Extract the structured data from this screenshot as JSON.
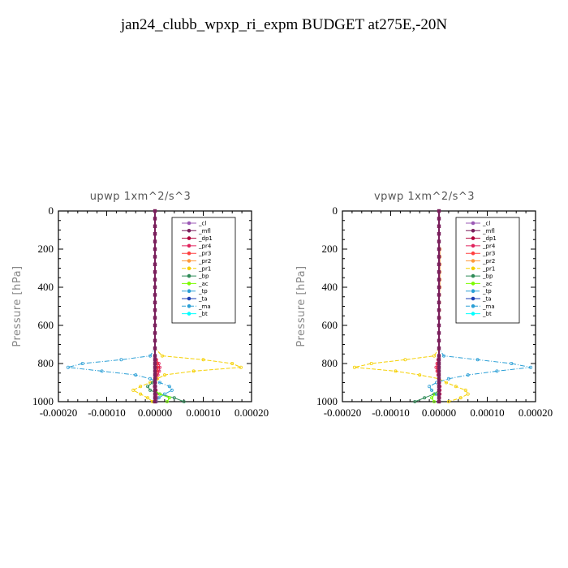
{
  "title": "jan24_clubb_wpxp_ri_expm  BUDGET at275E,-20N",
  "chart_data": [
    {
      "type": "line",
      "title": "upwp   1xm^2/s^3",
      "ylabel": "Pressure [hPa]",
      "xlabel": "",
      "xlim": [
        -0.0002,
        0.0002
      ],
      "ylim": [
        1000,
        0
      ],
      "xticks": [
        "-0.00020",
        "-0.00010",
        "0.00000",
        "0.00010",
        "0.00020"
      ],
      "yticks": [
        "0",
        "200",
        "400",
        "600",
        "800",
        "1000"
      ],
      "legend_position": "top-right",
      "levels": [
        0,
        40,
        80,
        120,
        160,
        200,
        240,
        280,
        320,
        360,
        400,
        440,
        480,
        520,
        560,
        600,
        640,
        680,
        720,
        760,
        780,
        800,
        820,
        840,
        860,
        880,
        900,
        920,
        940,
        960,
        980,
        1000
      ],
      "series": [
        {
          "name": "_cl",
          "color": "#9b59b6",
          "values": [
            0,
            0,
            0,
            0,
            0,
            0,
            0,
            0,
            0,
            0,
            0,
            0,
            0,
            0,
            0,
            0,
            0,
            0,
            0,
            0,
            0,
            0,
            0,
            0,
            0,
            0,
            0,
            0,
            0,
            0,
            0,
            0
          ]
        },
        {
          "name": "_mfl",
          "color": "#7a1f5c",
          "values": [
            0,
            0,
            0,
            0,
            0,
            0,
            0,
            0,
            0,
            0,
            0,
            0,
            0,
            0,
            0,
            0,
            0,
            0,
            0,
            0,
            0,
            0,
            0,
            0,
            0,
            0,
            0,
            0,
            0,
            0,
            0,
            0
          ]
        },
        {
          "name": "_dp1",
          "color": "#b0003a",
          "values": [
            0,
            0,
            0,
            0,
            0,
            0,
            0,
            0,
            0,
            0,
            0,
            0,
            0,
            0,
            0,
            0,
            0,
            0,
            0,
            0,
            2e-06,
            4e-06,
            6e-06,
            5e-06,
            3e-06,
            2e-06,
            1e-06,
            1e-06,
            2e-06,
            3e-06,
            4e-06,
            3e-06
          ]
        },
        {
          "name": "_pr4",
          "color": "#e0245e",
          "values": [
            0,
            0,
            0,
            0,
            0,
            0,
            0,
            0,
            0,
            0,
            0,
            0,
            0,
            0,
            0,
            0,
            0,
            0,
            0,
            0,
            3e-06,
            8e-06,
            1e-05,
            9e-06,
            6e-06,
            3e-06,
            1e-06,
            -1e-06,
            1e-06,
            3e-06,
            4e-06,
            2e-06
          ]
        },
        {
          "name": "_pr3",
          "color": "#ff4040",
          "values": [
            0,
            0,
            0,
            0,
            0,
            0,
            0,
            0,
            0,
            0,
            0,
            0,
            0,
            0,
            0,
            0,
            0,
            0,
            0,
            0,
            2e-06,
            4e-06,
            5e-06,
            4e-06,
            2e-06,
            0,
            0,
            0,
            0,
            0,
            0,
            0
          ]
        },
        {
          "name": "_pr2",
          "color": "#ff9a3c",
          "values": [
            0,
            0,
            0,
            0,
            0,
            0,
            0,
            0,
            0,
            0,
            0,
            0,
            0,
            0,
            0,
            0,
            0,
            0,
            0,
            0,
            0,
            0,
            0,
            0,
            0,
            0,
            0,
            0,
            0,
            0,
            0,
            0
          ]
        },
        {
          "name": "_pr1",
          "color": "#f5d000",
          "values": [
            0,
            0,
            0,
            0,
            0,
            0,
            0,
            0,
            0,
            0,
            0,
            0,
            0,
            0,
            0,
            0,
            0,
            0,
            0,
            1.5e-05,
            0.0001,
            0.00016,
            0.000178,
            8e-05,
            2e-05,
            5e-06,
            -1e-05,
            -3e-05,
            -4.5e-05,
            -3e-05,
            -1.5e-05,
            -5e-06
          ]
        },
        {
          "name": "_bp",
          "color": "#2e8b57",
          "values": [
            0,
            0,
            0,
            0,
            0,
            0,
            0,
            0,
            0,
            0,
            0,
            0,
            0,
            0,
            0,
            0,
            0,
            0,
            0,
            0,
            0,
            0,
            0,
            0,
            0,
            0,
            -5e-06,
            -1.5e-05,
            -1e-05,
            1e-05,
            4e-05,
            6e-05
          ]
        },
        {
          "name": "_ac",
          "color": "#7cfc00",
          "values": [
            0,
            0,
            0,
            0,
            0,
            0,
            0,
            0,
            0,
            0,
            0,
            0,
            0,
            0,
            0,
            0,
            0,
            0,
            0,
            0,
            0,
            0,
            0,
            0,
            0,
            0,
            0,
            0,
            0,
            1e-05,
            3e-05,
            2.5e-05
          ]
        },
        {
          "name": "_tp",
          "color": "#2a9fd6",
          "values": [
            0,
            0,
            0,
            0,
            0,
            0,
            0,
            0,
            0,
            0,
            0,
            0,
            0,
            0,
            0,
            0,
            0,
            0,
            0,
            -1e-05,
            -7e-05,
            -0.00015,
            -0.00018,
            -0.00011,
            -4e-05,
            -1e-05,
            1e-05,
            3e-05,
            3.5e-05,
            2e-05,
            8e-06,
            2e-06
          ]
        },
        {
          "name": "_ta",
          "color": "#1f3fb4",
          "values": [
            0,
            0,
            0,
            0,
            0,
            0,
            0,
            0,
            0,
            0,
            0,
            0,
            0,
            0,
            0,
            0,
            0,
            0,
            0,
            0,
            0,
            0,
            0,
            0,
            0,
            0,
            0,
            0,
            0,
            0,
            0,
            0
          ]
        },
        {
          "name": "_ma",
          "color": "#2a9fd6",
          "values": [
            0,
            0,
            0,
            0,
            0,
            0,
            0,
            0,
            0,
            0,
            0,
            0,
            0,
            0,
            0,
            0,
            0,
            0,
            0,
            0,
            0,
            0,
            0,
            0,
            0,
            0,
            0,
            0,
            0,
            0,
            0,
            0
          ]
        },
        {
          "name": "_bt",
          "color": "#00ffff",
          "values": [
            0,
            0,
            0,
            0,
            0,
            0,
            0,
            0,
            0,
            0,
            0,
            0,
            0,
            0,
            0,
            0,
            0,
            0,
            0,
            0,
            0,
            0,
            0,
            0,
            0,
            0,
            0,
            0,
            0,
            0,
            0,
            0
          ]
        }
      ]
    },
    {
      "type": "line",
      "title": "vpwp   1xm^2/s^3",
      "ylabel": "Pressure [hPa]",
      "xlabel": "",
      "xlim": [
        -0.0002,
        0.0002
      ],
      "ylim": [
        1000,
        0
      ],
      "xticks": [
        "-0.00020",
        "-0.00010",
        "0.00000",
        "0.00010",
        "0.00020"
      ],
      "yticks": [
        "0",
        "200",
        "400",
        "600",
        "800",
        "1000"
      ],
      "legend_position": "top-right",
      "levels": [
        0,
        40,
        80,
        120,
        160,
        200,
        240,
        280,
        320,
        360,
        400,
        440,
        480,
        520,
        560,
        600,
        640,
        680,
        720,
        760,
        780,
        800,
        820,
        840,
        860,
        880,
        900,
        920,
        940,
        960,
        980,
        1000
      ],
      "series": [
        {
          "name": "_cl",
          "color": "#9b59b6",
          "values": [
            0,
            0,
            0,
            0,
            0,
            0,
            0,
            0,
            0,
            0,
            0,
            0,
            0,
            0,
            0,
            0,
            0,
            0,
            0,
            0,
            0,
            0,
            0,
            0,
            0,
            0,
            0,
            0,
            0,
            0,
            0,
            0
          ]
        },
        {
          "name": "_mfl",
          "color": "#7a1f5c",
          "values": [
            0,
            0,
            0,
            0,
            0,
            0,
            0,
            0,
            0,
            0,
            0,
            0,
            0,
            0,
            0,
            0,
            0,
            0,
            0,
            0,
            0,
            0,
            0,
            0,
            0,
            0,
            0,
            0,
            0,
            0,
            0,
            0
          ]
        },
        {
          "name": "_dp1",
          "color": "#b0003a",
          "values": [
            0,
            0,
            0,
            0,
            0,
            0,
            0,
            0,
            0,
            0,
            0,
            0,
            0,
            0,
            0,
            0,
            0,
            0,
            0,
            0,
            -1e-06,
            -2e-06,
            -3e-06,
            -2e-06,
            -1e-06,
            0,
            0,
            1e-06,
            1e-06,
            1e-06,
            1e-06,
            0
          ]
        },
        {
          "name": "_pr4",
          "color": "#e0245e",
          "values": [
            0,
            0,
            0,
            0,
            0,
            0,
            0,
            0,
            0,
            0,
            0,
            0,
            0,
            0,
            0,
            0,
            0,
            0,
            0,
            0,
            -2e-06,
            -4e-06,
            -6e-06,
            -4e-06,
            -2e-06,
            0,
            1e-06,
            2e-06,
            2e-06,
            2e-06,
            1e-06,
            0
          ]
        },
        {
          "name": "_pr3",
          "color": "#ff4040",
          "values": [
            0,
            0,
            0,
            0,
            0,
            0,
            0,
            0,
            0,
            0,
            0,
            0,
            0,
            0,
            0,
            0,
            0,
            0,
            0,
            0,
            0,
            -2e-06,
            -3e-06,
            -2e-06,
            -1e-06,
            0,
            0,
            0,
            0,
            0,
            0,
            0
          ]
        },
        {
          "name": "_pr2",
          "color": "#ff9a3c",
          "values": [
            0,
            0,
            0,
            0,
            0,
            2e-06,
            2e-06,
            2e-06,
            2e-06,
            2e-06,
            2e-06,
            1e-06,
            1e-06,
            1e-06,
            1e-06,
            0,
            0,
            0,
            0,
            0,
            0,
            0,
            0,
            0,
            0,
            0,
            0,
            0,
            0,
            0,
            0,
            0
          ]
        },
        {
          "name": "_pr1",
          "color": "#f5d000",
          "values": [
            0,
            0,
            0,
            0,
            0,
            0,
            0,
            0,
            0,
            0,
            0,
            0,
            0,
            0,
            0,
            0,
            0,
            0,
            0,
            -1e-05,
            -7e-05,
            -0.00014,
            -0.000175,
            -9e-05,
            -4e-05,
            0.0,
            1.5e-05,
            3.5e-05,
            5.5e-05,
            6e-05,
            4.5e-05,
            2e-05
          ]
        },
        {
          "name": "_bp",
          "color": "#2e8b57",
          "values": [
            0,
            0,
            0,
            0,
            0,
            0,
            0,
            0,
            0,
            0,
            0,
            0,
            0,
            0,
            0,
            0,
            0,
            0,
            0,
            0,
            0,
            0,
            0,
            0,
            0,
            0,
            0,
            0,
            0,
            -1e-05,
            -3e-05,
            -5e-05
          ]
        },
        {
          "name": "_ac",
          "color": "#7cfc00",
          "values": [
            0,
            0,
            0,
            0,
            0,
            0,
            0,
            0,
            0,
            0,
            0,
            0,
            0,
            0,
            0,
            0,
            0,
            0,
            0,
            0,
            0,
            0,
            0,
            0,
            0,
            0,
            0,
            0,
            0,
            -8e-06,
            -1.5e-05,
            -1e-05
          ]
        },
        {
          "name": "_tp",
          "color": "#2a9fd6",
          "values": [
            0,
            0,
            0,
            0,
            0,
            0,
            0,
            0,
            0,
            0,
            0,
            0,
            0,
            0,
            0,
            0,
            0,
            0,
            0,
            1e-05,
            8e-05,
            0.00015,
            0.00019,
            0.00012,
            6e-05,
            2e-05,
            -5e-06,
            -2e-05,
            -1.5e-05,
            -5e-06,
            0,
            0
          ]
        },
        {
          "name": "_ta",
          "color": "#1f3fb4",
          "values": [
            0,
            0,
            0,
            0,
            0,
            0,
            0,
            0,
            0,
            0,
            0,
            0,
            0,
            0,
            0,
            0,
            0,
            0,
            0,
            0,
            0,
            0,
            0,
            0,
            0,
            0,
            0,
            0,
            0,
            0,
            0,
            0
          ]
        },
        {
          "name": "_ma",
          "color": "#2a9fd6",
          "values": [
            0,
            0,
            0,
            0,
            0,
            0,
            0,
            0,
            0,
            0,
            0,
            0,
            0,
            0,
            0,
            0,
            0,
            0,
            0,
            0,
            0,
            0,
            0,
            0,
            0,
            0,
            0,
            0,
            0,
            0,
            0,
            0
          ]
        },
        {
          "name": "_bt",
          "color": "#00ffff",
          "values": [
            0,
            0,
            0,
            0,
            0,
            0,
            0,
            0,
            0,
            0,
            0,
            0,
            0,
            0,
            0,
            0,
            0,
            0,
            0,
            0,
            0,
            0,
            0,
            0,
            0,
            0,
            0,
            0,
            0,
            0,
            0,
            0
          ]
        }
      ]
    }
  ]
}
